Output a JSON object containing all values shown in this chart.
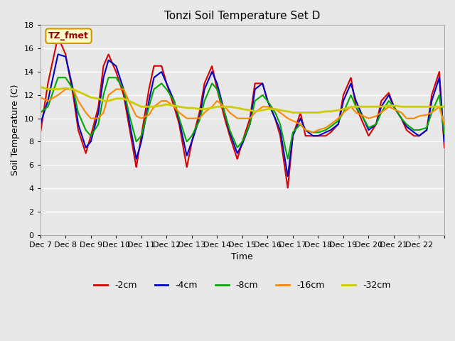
{
  "title": "Tonzi Soil Temperature Set D",
  "xlabel": "Time",
  "ylabel": "Soil Temperature (C)",
  "ylim": [
    0,
    18
  ],
  "xlim": [
    0,
    16
  ],
  "yticks": [
    0,
    2,
    4,
    6,
    8,
    10,
    12,
    14,
    16,
    18
  ],
  "xtick_labels": [
    "Dec 7",
    "Dec 8",
    "Dec 9",
    "Dec 10",
    "Dec 11",
    "Dec 12",
    "Dec 13",
    "Dec 14",
    "Dec 15",
    "Dec 16",
    "Dec 17",
    "Dec 18",
    "Dec 19",
    "Dec 20",
    "Dec 21",
    "Dec 22"
  ],
  "label_box_text": "TZ_fmet",
  "label_box_color": "#ffffcc",
  "label_box_edge": "#cc9900",
  "label_text_color": "#990000",
  "background_color": "#e8e8e8",
  "plot_bg_color": "#e8e8e8",
  "grid_color": "#ffffff",
  "series": {
    "-2cm": {
      "color": "#dd0000",
      "lw": 1.5
    },
    "-4cm": {
      "color": "#0000cc",
      "lw": 1.5
    },
    "-8cm": {
      "color": "#00aa00",
      "lw": 1.5
    },
    "-16cm": {
      "color": "#ff8800",
      "lw": 1.5
    },
    "-32cm": {
      "color": "#cccc00",
      "lw": 2.0
    }
  },
  "legend_labels": [
    "-2cm",
    "-4cm",
    "-8cm",
    "-16cm",
    "-32cm"
  ],
  "legend_colors": [
    "#dd0000",
    "#0000cc",
    "#00aa00",
    "#ff8800",
    "#cccc00"
  ],
  "knots_t": [
    0,
    0.3,
    0.7,
    1.0,
    1.3,
    1.5,
    1.8,
    2.0,
    2.3,
    2.5,
    2.7,
    3.0,
    3.3,
    3.5,
    3.8,
    4.0,
    4.3,
    4.5,
    4.8,
    5.0,
    5.3,
    5.5,
    5.8,
    6.0,
    6.3,
    6.5,
    6.8,
    7.0,
    7.3,
    7.5,
    7.8,
    8.0,
    8.3,
    8.5,
    8.8,
    9.0,
    9.3,
    9.5,
    9.8,
    10.0,
    10.3,
    10.5,
    10.8,
    11.0,
    11.3,
    11.5,
    11.8,
    12.0,
    12.3,
    12.5,
    12.8,
    13.0,
    13.3,
    13.5,
    13.8,
    14.0,
    14.3,
    14.5,
    14.8,
    15.0,
    15.3,
    15.5,
    15.8,
    16.0
  ],
  "knots_v_2cm": [
    8.7,
    13.0,
    17.0,
    15.5,
    12.0,
    9.0,
    7.0,
    8.5,
    11.0,
    14.5,
    15.5,
    14.0,
    12.0,
    9.5,
    5.8,
    8.5,
    12.5,
    14.5,
    14.5,
    13.0,
    11.0,
    9.5,
    5.8,
    8.0,
    10.5,
    13.0,
    14.5,
    12.5,
    10.0,
    8.5,
    6.5,
    8.0,
    10.0,
    13.0,
    13.0,
    11.5,
    10.0,
    8.5,
    4.0,
    8.5,
    10.5,
    8.5,
    8.5,
    8.5,
    8.5,
    8.8,
    9.5,
    12.0,
    13.5,
    11.0,
    9.5,
    8.5,
    9.5,
    11.5,
    12.2,
    11.0,
    10.0,
    9.0,
    8.5,
    8.5,
    9.0,
    12.0,
    14.0,
    7.5
  ],
  "knots_v_4cm": [
    9.5,
    11.5,
    15.5,
    15.3,
    12.5,
    9.5,
    7.5,
    8.0,
    10.5,
    13.5,
    15.0,
    14.5,
    12.5,
    10.0,
    6.5,
    8.0,
    11.5,
    13.5,
    14.0,
    13.0,
    11.5,
    9.8,
    6.8,
    8.0,
    10.0,
    12.5,
    14.0,
    13.0,
    10.5,
    8.8,
    7.0,
    7.8,
    9.5,
    12.5,
    13.0,
    11.5,
    10.0,
    9.0,
    5.0,
    8.5,
    10.0,
    9.0,
    8.5,
    8.5,
    8.8,
    9.0,
    9.5,
    11.5,
    13.0,
    11.5,
    10.0,
    9.0,
    9.5,
    11.0,
    12.0,
    11.0,
    10.0,
    9.3,
    8.8,
    8.5,
    9.0,
    11.5,
    13.5,
    8.0
  ],
  "knots_v_8cm": [
    10.5,
    11.0,
    13.5,
    13.5,
    12.5,
    10.5,
    9.0,
    8.5,
    9.5,
    12.0,
    13.5,
    13.5,
    12.5,
    10.5,
    8.0,
    8.5,
    11.0,
    12.5,
    13.0,
    12.5,
    11.5,
    10.0,
    8.0,
    8.5,
    9.8,
    11.5,
    13.0,
    12.5,
    10.5,
    9.0,
    7.5,
    8.0,
    9.5,
    11.5,
    12.0,
    11.5,
    10.5,
    9.5,
    6.5,
    8.8,
    9.5,
    9.0,
    8.8,
    8.8,
    9.0,
    9.3,
    9.8,
    10.5,
    12.0,
    11.0,
    10.0,
    9.2,
    9.5,
    10.5,
    11.5,
    11.0,
    10.0,
    9.5,
    9.0,
    9.0,
    9.2,
    10.5,
    12.0,
    8.7
  ],
  "knots_v_16cm": [
    11.8,
    11.5,
    12.0,
    12.5,
    12.5,
    11.5,
    10.5,
    10.0,
    10.0,
    10.5,
    12.0,
    12.5,
    12.5,
    11.5,
    10.2,
    10.0,
    10.3,
    11.0,
    11.5,
    11.5,
    11.0,
    10.5,
    10.0,
    10.0,
    10.0,
    10.5,
    11.0,
    11.5,
    11.0,
    10.5,
    10.0,
    10.0,
    10.0,
    10.5,
    11.0,
    11.0,
    10.8,
    10.5,
    10.0,
    9.8,
    9.5,
    9.0,
    8.8,
    9.0,
    9.2,
    9.5,
    10.0,
    10.5,
    11.0,
    10.5,
    10.2,
    10.0,
    10.2,
    10.5,
    11.0,
    10.8,
    10.5,
    10.0,
    10.0,
    10.2,
    10.3,
    10.5,
    11.0,
    9.5
  ],
  "knots_v_32cm": [
    12.7,
    12.5,
    12.5,
    12.6,
    12.5,
    12.3,
    12.0,
    11.8,
    11.7,
    11.5,
    11.5,
    11.7,
    11.7,
    11.5,
    11.2,
    11.0,
    11.0,
    11.0,
    11.1,
    11.2,
    11.1,
    11.0,
    10.9,
    10.9,
    10.8,
    10.8,
    10.9,
    11.0,
    11.0,
    11.0,
    10.9,
    10.8,
    10.7,
    10.6,
    10.7,
    10.8,
    10.8,
    10.7,
    10.6,
    10.5,
    10.5,
    10.5,
    10.5,
    10.5,
    10.6,
    10.6,
    10.7,
    10.8,
    11.0,
    11.0,
    11.0,
    11.0,
    11.0,
    11.0,
    11.1,
    11.1,
    11.0,
    11.0,
    11.0,
    11.0,
    11.0,
    11.0,
    11.0,
    11.0
  ]
}
